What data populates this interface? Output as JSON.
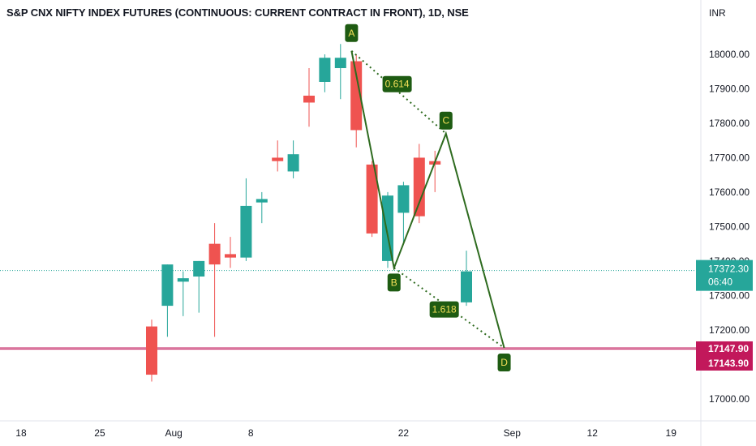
{
  "header": {
    "title": "S&P CNX NIFTY INDEX FUTURES (CONTINUOUS: CURRENT CONTRACT IN FRONT), 1D, NSE",
    "currency": "INR"
  },
  "price_labels": {
    "last_price": "17372.30",
    "countdown": "06:40",
    "line_one": "17147.90",
    "line_two": "17143.90"
  },
  "colors": {
    "up": "#26a69a",
    "down": "#ef5350",
    "pattern": "#2e6b1f",
    "label_bg": "#1e5b12",
    "label_text": "#f5e05a",
    "hline": "#c2185b",
    "last_price": "#26a69a"
  },
  "chart_data": {
    "type": "candlestick",
    "title": "S&P CNX NIFTY INDEX FUTURES (CONTINUOUS: CURRENT CONTRACT IN FRONT), 1D, NSE",
    "currency": "INR",
    "ylim": [
      16920,
      18160
    ],
    "y_ticks": [
      17000,
      17100,
      17200,
      17300,
      17400,
      17500,
      17600,
      17700,
      17800,
      17900,
      18000
    ],
    "y_tick_labels": [
      "17000.00",
      "",
      "17200.00",
      "17300.00",
      "17400.00",
      "17500.00",
      "17600.00",
      "17700.00",
      "17800.00",
      "17900.00",
      "18000.00"
    ],
    "x_ticks": [
      {
        "label": "18",
        "slot": -8.3
      },
      {
        "label": "25",
        "slot": -3.3
      },
      {
        "label": "Aug",
        "slot": 1.4
      },
      {
        "label": "8",
        "slot": 6.3
      },
      {
        "label": "22",
        "slot": 16.0
      },
      {
        "label": "Sep",
        "slot": 22.9
      },
      {
        "label": "12",
        "slot": 28.0
      },
      {
        "label": "19",
        "slot": 33.0
      }
    ],
    "candles": [
      {
        "o": 17210,
        "h": 17230,
        "l": 17050,
        "c": 17070
      },
      {
        "o": 17270,
        "h": 17390,
        "l": 17180,
        "c": 17390
      },
      {
        "o": 17340,
        "h": 17370,
        "l": 17240,
        "c": 17350
      },
      {
        "o": 17355,
        "h": 17400,
        "l": 17250,
        "c": 17400
      },
      {
        "o": 17450,
        "h": 17510,
        "l": 17180,
        "c": 17390
      },
      {
        "o": 17420,
        "h": 17470,
        "l": 17380,
        "c": 17410
      },
      {
        "o": 17410,
        "h": 17640,
        "l": 17400,
        "c": 17560
      },
      {
        "o": 17570,
        "h": 17600,
        "l": 17510,
        "c": 17580
      },
      {
        "o": 17700,
        "h": 17750,
        "l": 17660,
        "c": 17690
      },
      {
        "o": 17660,
        "h": 17750,
        "l": 17640,
        "c": 17710
      },
      {
        "o": 17880,
        "h": 17960,
        "l": 17790,
        "c": 17860
      },
      {
        "o": 17920,
        "h": 18000,
        "l": 17890,
        "c": 17990
      },
      {
        "o": 17960,
        "h": 18030,
        "l": 17870,
        "c": 17990
      },
      {
        "o": 17980,
        "h": 18000,
        "l": 17730,
        "c": 17780
      },
      {
        "o": 17680,
        "h": 17690,
        "l": 17470,
        "c": 17480
      },
      {
        "o": 17400,
        "h": 17600,
        "l": 17380,
        "c": 17590
      },
      {
        "o": 17540,
        "h": 17630,
        "l": 17450,
        "c": 17620
      },
      {
        "o": 17700,
        "h": 17740,
        "l": 17510,
        "c": 17530
      },
      {
        "o": 17690,
        "h": 17720,
        "l": 17600,
        "c": 17680
      },
      {
        "o": 17280,
        "h": 17430,
        "l": 17270,
        "c": 17370
      }
    ],
    "candle_slots": [
      0,
      1,
      2,
      3,
      4,
      5,
      6,
      7,
      8,
      9,
      10,
      11,
      12,
      13,
      14,
      15,
      16,
      17,
      18,
      20
    ],
    "pattern": {
      "points": [
        {
          "label": "A",
          "slot": 12.7,
          "value": 18010
        },
        {
          "label": "B",
          "slot": 15.4,
          "value": 17380
        },
        {
          "label": "C",
          "slot": 18.7,
          "value": 17770
        },
        {
          "label": "D",
          "slot": 22.4,
          "value": 17147.9
        }
      ],
      "ratios": [
        {
          "label": "0.614",
          "from": "A",
          "to": "C"
        },
        {
          "label": "1.618",
          "from": "B",
          "to": "D"
        }
      ]
    },
    "horizontal_lines": [
      17147.9,
      17143.9
    ],
    "last_price": 17372.3
  }
}
